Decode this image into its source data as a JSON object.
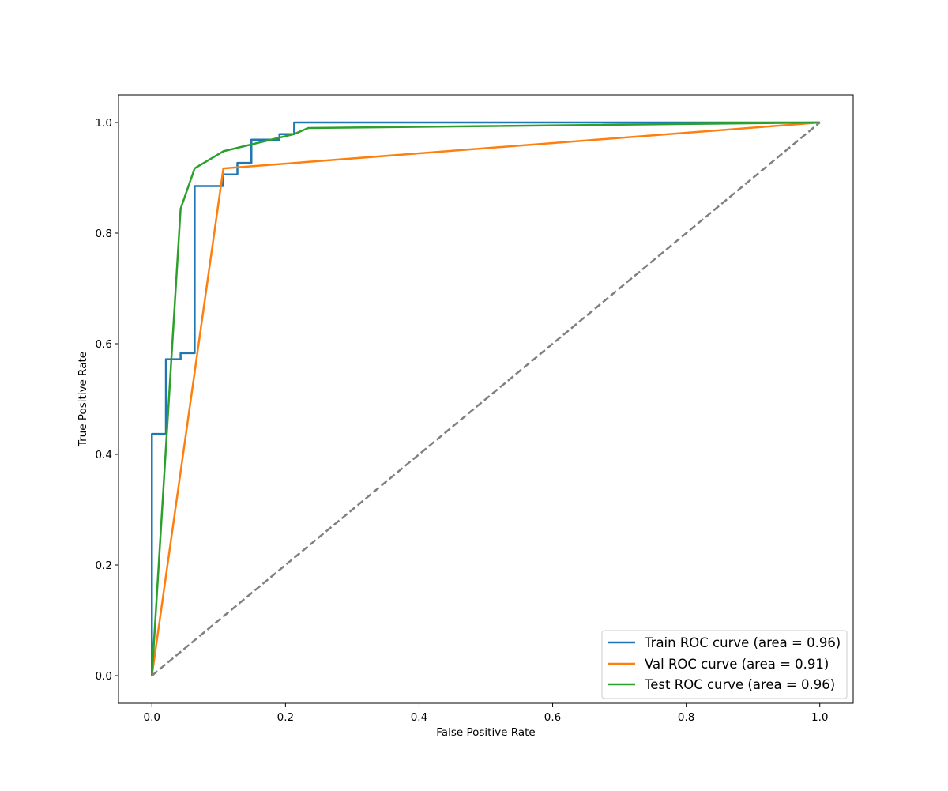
{
  "chart_data": {
    "type": "line",
    "xlabel": "False Positive Rate",
    "ylabel": "True Positive Rate",
    "xlim": [
      -0.05,
      1.05
    ],
    "ylim": [
      -0.05,
      1.05
    ],
    "xticks": [
      0.0,
      0.2,
      0.4,
      0.6,
      0.8,
      1.0
    ],
    "yticks": [
      0.0,
      0.2,
      0.4,
      0.6,
      0.8,
      1.0
    ],
    "xtick_labels": [
      "0.0",
      "0.2",
      "0.4",
      "0.6",
      "0.8",
      "1.0"
    ],
    "ytick_labels": [
      "0.0",
      "0.2",
      "0.4",
      "0.6",
      "0.8",
      "1.0"
    ],
    "grid": false,
    "legend_position": "lower-right",
    "series": [
      {
        "name": "Train ROC curve (area = 0.96)",
        "color": "#1f77b4",
        "style": "solid",
        "x": [
          0.0,
          0.0,
          0.021,
          0.021,
          0.043,
          0.043,
          0.064,
          0.064,
          0.106,
          0.106,
          0.128,
          0.128,
          0.149,
          0.149,
          0.191,
          0.191,
          0.213,
          0.213,
          1.0
        ],
        "y": [
          0.0,
          0.437,
          0.437,
          0.572,
          0.572,
          0.583,
          0.583,
          0.885,
          0.885,
          0.906,
          0.906,
          0.927,
          0.927,
          0.969,
          0.969,
          0.979,
          0.979,
          1.0,
          1.0
        ]
      },
      {
        "name": "Val ROC curve (area = 0.91)",
        "color": "#ff7f0e",
        "style": "solid",
        "x": [
          0.0,
          0.107,
          1.0
        ],
        "y": [
          0.0,
          0.917,
          1.0
        ]
      },
      {
        "name": "Test ROC curve (area = 0.96)",
        "color": "#2ca02c",
        "style": "solid",
        "x": [
          0.0,
          0.043,
          0.064,
          0.107,
          0.213,
          0.234,
          1.0
        ],
        "y": [
          0.0,
          0.844,
          0.917,
          0.948,
          0.979,
          0.99,
          1.0
        ]
      },
      {
        "color": "#808080",
        "style": "dashed",
        "x": [
          0.0,
          1.0
        ],
        "y": [
          0.0,
          1.0
        ]
      }
    ]
  }
}
